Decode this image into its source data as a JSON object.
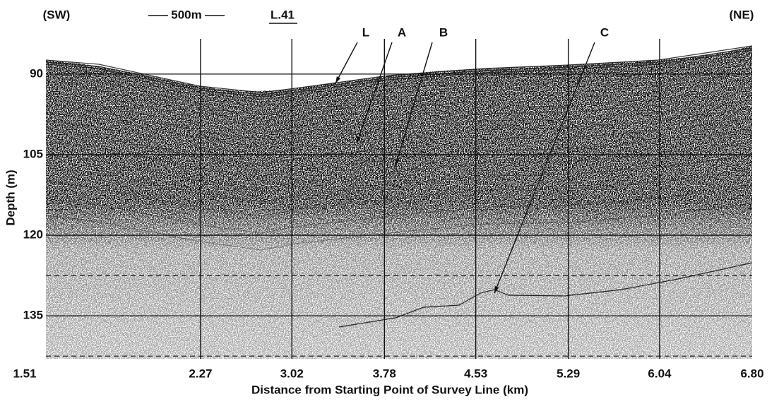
{
  "chart_data": {
    "type": "seismic-profile",
    "header": {
      "left": "(SW)",
      "scale": "500m",
      "line": "L.41",
      "right": "(NE)"
    },
    "xlabel": "Distance from Starting Point of Survey Line (km)",
    "ylabel": "Depth (m)",
    "xlim": [
      1.0,
      6.8
    ],
    "ylim": [
      82,
      143
    ],
    "xticks": [
      {
        "value": 1.51,
        "label": "1.51"
      },
      {
        "value": 2.27,
        "label": "2.27"
      },
      {
        "value": 3.02,
        "label": "3.02"
      },
      {
        "value": 3.78,
        "label": "3.78"
      },
      {
        "value": 4.53,
        "label": "4.53"
      },
      {
        "value": 5.29,
        "label": "5.29"
      },
      {
        "value": 6.04,
        "label": "6.04"
      },
      {
        "value": 6.8,
        "label": "6.80"
      }
    ],
    "yticks": [
      90,
      105,
      120,
      135
    ],
    "minor_yticks": [
      127.5,
      142.5
    ],
    "annotations": [
      "L",
      "A",
      "B",
      "C"
    ]
  }
}
